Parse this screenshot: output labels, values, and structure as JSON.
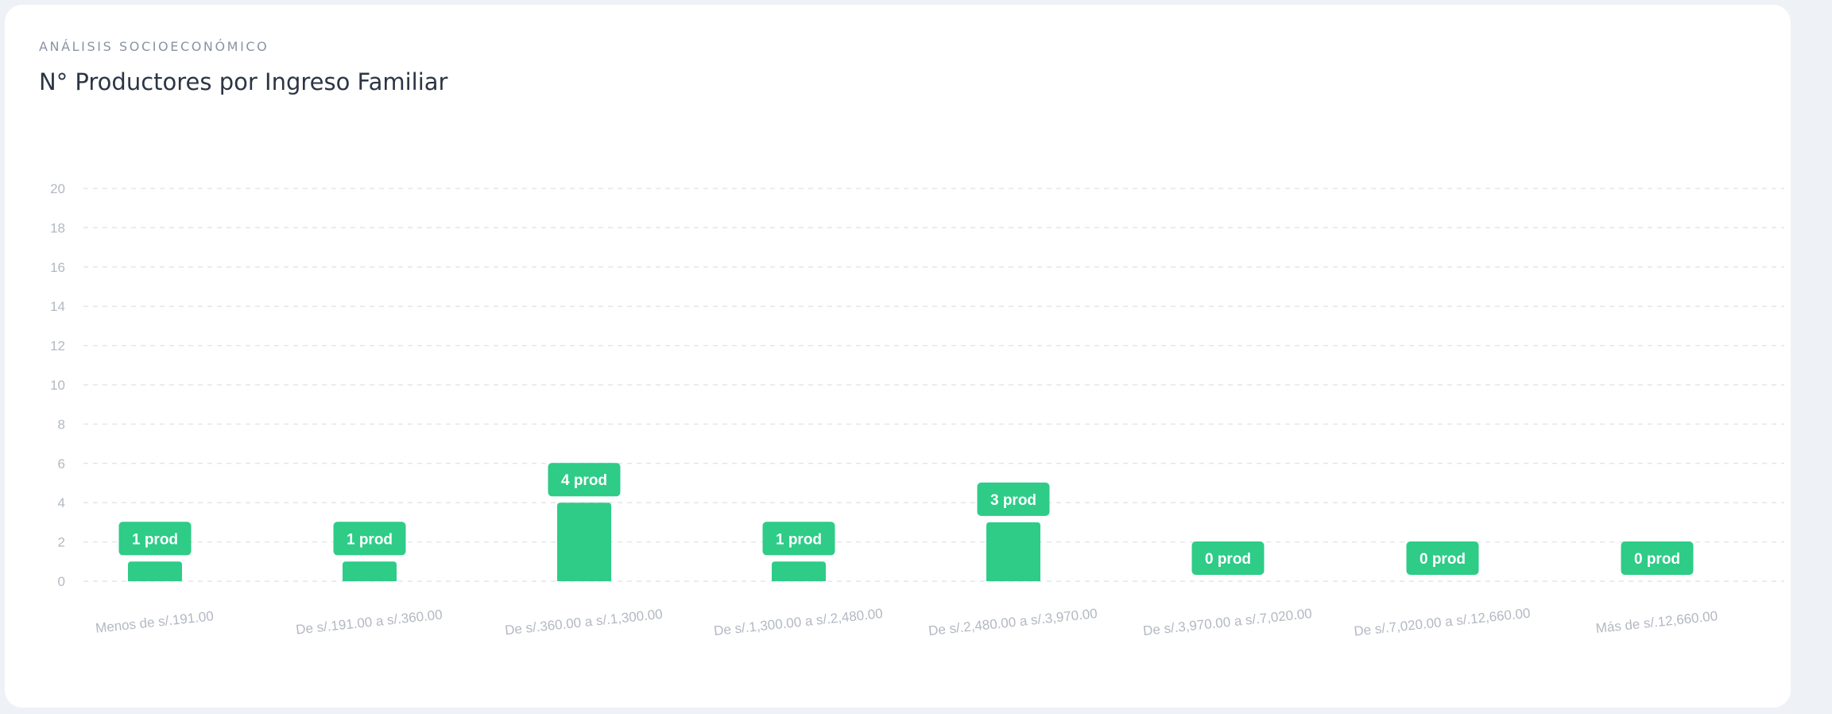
{
  "card": {
    "kicker": "ANÁLISIS SOCIOECONÓMICO",
    "title": "N° Productores por Ingreso Familiar"
  },
  "chart_data": {
    "type": "bar",
    "categories": [
      "Menos de s/.191.00",
      "De s/.191.00 a s/.360.00",
      "De s/.360.00 a s/.1,300.00",
      "De s/.1,300.00 a s/.2,480.00",
      "De s/.2,480.00 a s/.3,970.00",
      "De s/.3,970.00 a s/.7,020.00",
      "De s/.7,020.00 a s/.12,660.00",
      "Más de s/.12,660.00"
    ],
    "values": [
      1,
      1,
      4,
      1,
      3,
      0,
      0,
      0
    ],
    "data_labels": [
      "1 prod",
      "1 prod",
      "4 prod",
      "1 prod",
      "3 prod",
      "0 prod",
      "0 prod",
      "0 prod"
    ],
    "ylim": [
      0,
      20
    ],
    "yticks": [
      0,
      2,
      4,
      6,
      8,
      10,
      12,
      14,
      16,
      18,
      20
    ],
    "grid": true,
    "bar_color": "#2ecc87",
    "label_bg_color": "#2ecc87",
    "label_text_color": "#ffffff",
    "tick_color": "#b3b8c2",
    "grid_color": "#e3e6ea"
  }
}
